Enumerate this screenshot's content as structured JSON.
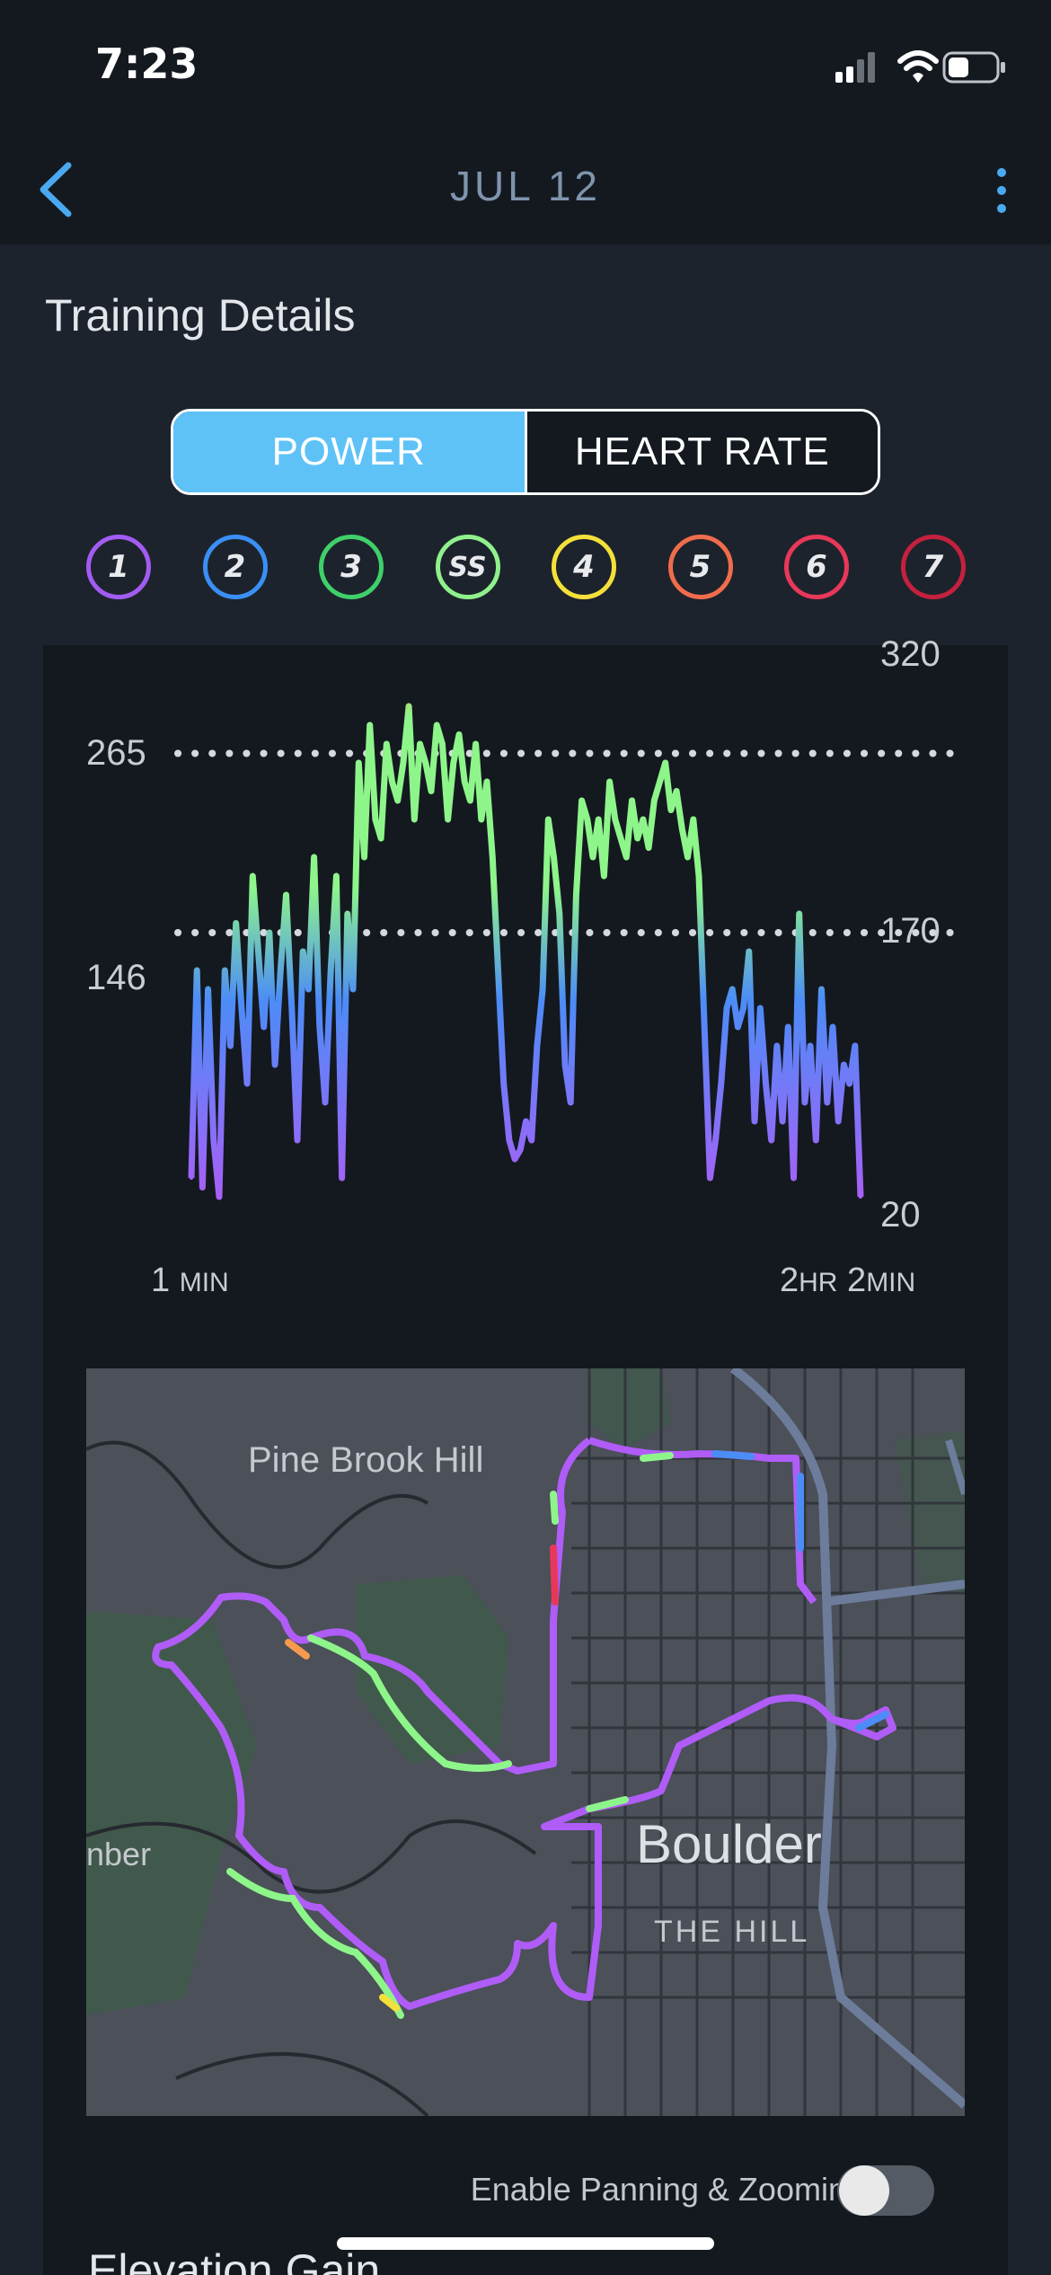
{
  "status_bar": {
    "time": "7:23"
  },
  "nav": {
    "title": "JUL 12"
  },
  "section_title": "Training Details",
  "segmented": {
    "power_label": "POWER",
    "heart_rate_label": "HEART RATE",
    "selected": "POWER"
  },
  "zones": [
    {
      "label": "1",
      "color": "#a25cf2"
    },
    {
      "label": "2",
      "color": "#3a8ff5"
    },
    {
      "label": "3",
      "color": "#3fd06a"
    },
    {
      "label": "SS",
      "color": "#8ff08c"
    },
    {
      "label": "4",
      "color": "#f4e03a"
    },
    {
      "label": "5",
      "color": "#ef6d4c"
    },
    {
      "label": "6",
      "color": "#e8385a"
    },
    {
      "label": "7",
      "color": "#c3213e"
    }
  ],
  "chart_data": {
    "type": "area",
    "title": "",
    "xlabel": "",
    "ylabel": "",
    "x_start_label": {
      "value": "1",
      "unit": "MIN"
    },
    "x_end_label": {
      "value_hr": "2",
      "unit_hr": "HR",
      "value_min": "2",
      "unit_min": "MIN"
    },
    "left_reference_lines": [
      265,
      146
    ],
    "right_axis_ticks": [
      320,
      170,
      20
    ],
    "ylim": [
      20,
      320
    ],
    "colors": {
      "low": "#b05cf7",
      "mid": "#4c8cf7",
      "high": "#8ef58a",
      "peak": "#f59a4e"
    },
    "series": [
      {
        "values": [
          40,
          150,
          35,
          140,
          60,
          30,
          150,
          110,
          175,
          130,
          90,
          200,
          160,
          120,
          170,
          100,
          150,
          190,
          130,
          60,
          160,
          140,
          210,
          120,
          80,
          150,
          200,
          40,
          180,
          140,
          260,
          210,
          280,
          230,
          220,
          270,
          250,
          240,
          260,
          290,
          230,
          270,
          260,
          245,
          280,
          270,
          230,
          260,
          275,
          250,
          240,
          270,
          230,
          250,
          210,
          150,
          90,
          60,
          50,
          55,
          70,
          60,
          110,
          140,
          230,
          210,
          180,
          100,
          80,
          190,
          240,
          230,
          210,
          230,
          200,
          250,
          230,
          220,
          210,
          240,
          220,
          230,
          215,
          240,
          250,
          260,
          235,
          245,
          225,
          210,
          230,
          200,
          120,
          40,
          60,
          90,
          130,
          140,
          120,
          130,
          160,
          70,
          130,
          90,
          60,
          110,
          70,
          120,
          40,
          180,
          80,
          110,
          60,
          140,
          80,
          120,
          70,
          100,
          90,
          110,
          30
        ]
      }
    ]
  },
  "map": {
    "place_labels": [
      "Pine Brook Hill",
      "Boulder",
      "THE HILL",
      "nber"
    ]
  },
  "toggle": {
    "label": "Enable Panning & Zooming",
    "enabled": false
  },
  "next_section_title": "Elevation Gain"
}
